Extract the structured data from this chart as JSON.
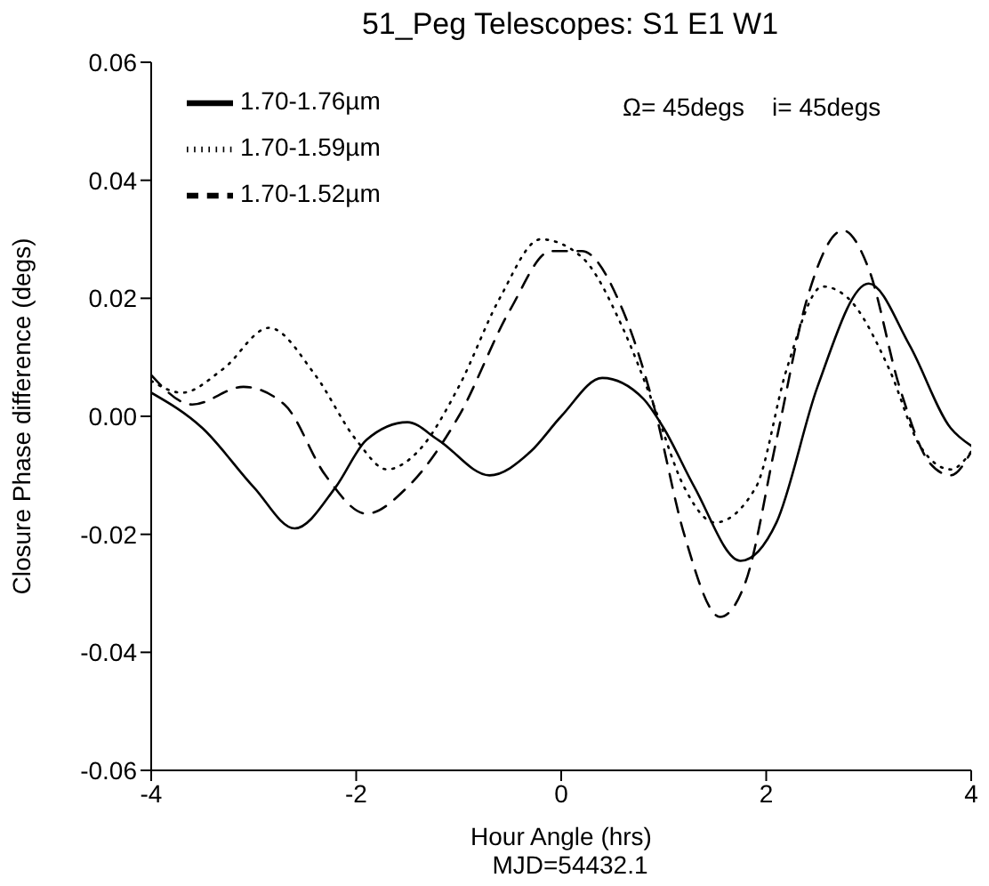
{
  "chart_data": {
    "type": "line",
    "title": "51_Peg   Telescopes: S1 E1 W1",
    "xlabel": "Hour Angle (hrs)",
    "ylabel": "Closure Phase difference (degs)",
    "annotations": [
      "Ω= 45degs    i= 45degs",
      "MJD=54432.1"
    ],
    "xlim": [
      -4,
      4
    ],
    "xticks": [
      -4,
      -2,
      0,
      2,
      4
    ],
    "ylim": [
      -0.06,
      0.06
    ],
    "yticks": [
      {
        "value": -0.06,
        "label": "-0.06"
      },
      {
        "value": -0.04,
        "label": "-0.04"
      },
      {
        "value": -0.02,
        "label": "-0.02"
      },
      {
        "value": 0,
        "label": "0.00"
      },
      {
        "value": 0.02,
        "label": "0.02"
      },
      {
        "value": 0.04,
        "label": "0.04"
      },
      {
        "value": 0.06,
        "label": "0.06"
      }
    ],
    "grid": false,
    "legend": "top left",
    "marker": "none",
    "series": [
      {
        "name": "1.70-1.76µm",
        "color": "#000000",
        "line_style": "solid",
        "x": [
          -4,
          -3.5,
          -3,
          -2.6,
          -2.2,
          -1.9,
          -1.5,
          -1.2,
          -0.7,
          -0.3,
          0,
          0.4,
          0.8,
          1.0,
          1.3,
          1.75,
          2.1,
          2.5,
          3.0,
          3.4,
          3.8,
          4
        ],
        "values": [
          0.004,
          -0.002,
          -0.012,
          -0.019,
          -0.012,
          -0.004,
          -0.001,
          -0.004,
          -0.01,
          -0.006,
          0,
          0.0065,
          0.003,
          -0.002,
          -0.012,
          -0.0245,
          -0.018,
          0.005,
          0.0225,
          0.012,
          -0.002,
          -0.005
        ]
      },
      {
        "name": "1.70-1.59µm",
        "color": "#000000",
        "line_style": "dotted",
        "x": [
          -4,
          -3.7,
          -3.3,
          -2.85,
          -2.4,
          -2.0,
          -1.7,
          -1.4,
          -1.0,
          -0.6,
          -0.2,
          0.2,
          0.6,
          0.9,
          1.2,
          1.5,
          1.9,
          2.2,
          2.55,
          2.8,
          3.2,
          3.5,
          3.8,
          4
        ],
        "values": [
          0.006,
          0.004,
          0.008,
          0.015,
          0.007,
          -0.004,
          -0.009,
          -0.006,
          0.005,
          0.02,
          0.03,
          0.027,
          0.015,
          0.002,
          -0.012,
          -0.018,
          -0.012,
          0.008,
          0.022,
          0.02,
          0.008,
          -0.005,
          -0.009,
          -0.006
        ]
      },
      {
        "name": "1.70-1.52µm",
        "color": "#000000",
        "line_style": "dashed",
        "x": [
          -4,
          -3.6,
          -3.1,
          -2.7,
          -2.3,
          -1.9,
          -1.5,
          -1.0,
          -0.5,
          -0.1,
          0.2,
          0.6,
          0.9,
          1.2,
          1.55,
          1.8,
          2.1,
          2.4,
          2.75,
          3.0,
          3.3,
          3.6,
          3.8,
          4
        ],
        "values": [
          0.007,
          0.002,
          0.005,
          0.002,
          -0.01,
          -0.0165,
          -0.012,
          0,
          0.018,
          0.028,
          0.028,
          0.018,
          0.002,
          -0.02,
          -0.034,
          -0.028,
          -0.004,
          0.02,
          0.0315,
          0.025,
          0.005,
          -0.008,
          -0.01,
          -0.006
        ]
      }
    ]
  }
}
